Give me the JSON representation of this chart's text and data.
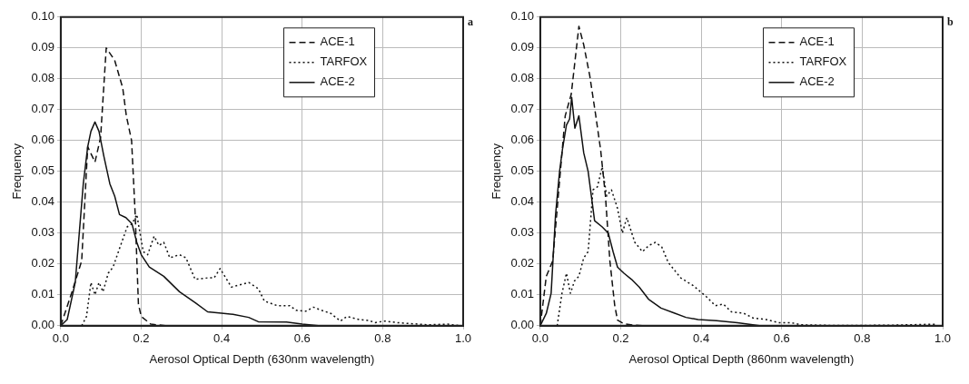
{
  "chart_data": [
    {
      "type": "line",
      "annotations": [
        "a"
      ],
      "xlabel": "Aerosol Optical Depth (630nm wavelength)",
      "ylabel": "Frequency",
      "xlim": [
        0,
        1
      ],
      "ylim": [
        0,
        0.1
      ],
      "xticks": [
        {
          "value": 0,
          "label": "0.0"
        },
        {
          "value": 0.2,
          "label": "0.2"
        },
        {
          "value": 0.4,
          "label": "0.4"
        },
        {
          "value": 0.6,
          "label": "0.6"
        },
        {
          "value": 0.8,
          "label": "0.8"
        },
        {
          "value": 1,
          "label": "1.0"
        }
      ],
      "yticks": [
        {
          "value": 0,
          "label": "0.00"
        },
        {
          "value": 0.01,
          "label": "0.01"
        },
        {
          "value": 0.02,
          "label": "0.02"
        },
        {
          "value": 0.03,
          "label": "0.03"
        },
        {
          "value": 0.04,
          "label": "0.04"
        },
        {
          "value": 0.05,
          "label": "0.05"
        },
        {
          "value": 0.06,
          "label": "0.06"
        },
        {
          "value": 0.07,
          "label": "0.07"
        },
        {
          "value": 0.08,
          "label": "0.08"
        },
        {
          "value": 0.09,
          "label": "0.09"
        },
        {
          "value": 0.1,
          "label": "0.10"
        }
      ],
      "grid": true,
      "legend": "top right",
      "marker": "none",
      "series": [
        {
          "name": "ACE-1",
          "color": "#111111",
          "line_style": "dashed",
          "x": [
            0,
            0.028,
            0.052,
            0.067,
            0.085,
            0.099,
            0.113,
            0.134,
            0.154,
            0.163,
            0.176,
            0.185,
            0.193,
            0.2,
            0.224,
            0.26,
            0.4,
            0.6,
            0.8,
            1
          ],
          "values": [
            0,
            0.011,
            0.021,
            0.058,
            0.053,
            0.061,
            0.09,
            0.086,
            0.077,
            0.068,
            0.06,
            0.036,
            0.007,
            0.003,
            0.0005,
            0,
            0,
            0,
            0,
            0
          ]
        },
        {
          "name": "TARFOX",
          "color": "#111111",
          "line_style": "dotted",
          "x": [
            0.052,
            0.064,
            0.075,
            0.085,
            0.095,
            0.105,
            0.118,
            0.13,
            0.146,
            0.165,
            0.177,
            0.189,
            0.197,
            0.205,
            0.216,
            0.232,
            0.244,
            0.256,
            0.271,
            0.295,
            0.311,
            0.334,
            0.365,
            0.381,
            0.396,
            0.424,
            0.467,
            0.491,
            0.506,
            0.538,
            0.569,
            0.585,
            0.609,
            0.628,
            0.648,
            0.671,
            0.695,
            0.711,
            0.742,
            0.766,
            0.781,
            0.805,
            0.836,
            0.867,
            0.914,
            0.961,
            0.992
          ],
          "values": [
            0,
            0.003,
            0.014,
            0.01,
            0.014,
            0.011,
            0.017,
            0.019,
            0.025,
            0.032,
            0.033,
            0.036,
            0.03,
            0.024,
            0.023,
            0.029,
            0.026,
            0.027,
            0.022,
            0.023,
            0.022,
            0.015,
            0.0155,
            0.0155,
            0.0185,
            0.0125,
            0.014,
            0.012,
            0.008,
            0.0065,
            0.0065,
            0.005,
            0.0047,
            0.006,
            0.005,
            0.004,
            0.0015,
            0.003,
            0.002,
            0.0017,
            0.001,
            0.0015,
            0.001,
            0.0007,
            0.0003,
            0.0005,
            0
          ]
        },
        {
          "name": "ACE-2",
          "color": "#111111",
          "line_style": "solid",
          "x": [
            0,
            0.016,
            0.036,
            0.056,
            0.067,
            0.075,
            0.085,
            0.095,
            0.107,
            0.122,
            0.134,
            0.146,
            0.162,
            0.177,
            0.189,
            0.2,
            0.22,
            0.256,
            0.295,
            0.334,
            0.365,
            0.405,
            0.428,
            0.467,
            0.491,
            0.561,
            0.6,
            0.64,
            0.8,
            1
          ],
          "values": [
            0,
            0.002,
            0.014,
            0.046,
            0.058,
            0.063,
            0.066,
            0.063,
            0.055,
            0.046,
            0.042,
            0.036,
            0.035,
            0.033,
            0.027,
            0.023,
            0.019,
            0.016,
            0.011,
            0.0075,
            0.0045,
            0.004,
            0.0037,
            0.0027,
            0.0013,
            0.0012,
            0.0005,
            0,
            0,
            0
          ]
        }
      ]
    },
    {
      "type": "line",
      "annotations": [
        "b"
      ],
      "xlabel": "Aerosol Optical Depth (860nm wavelength)",
      "ylabel": "Frequency",
      "xlim": [
        0,
        1
      ],
      "ylim": [
        0,
        0.1
      ],
      "xticks": [
        {
          "value": 0,
          "label": "0.0"
        },
        {
          "value": 0.2,
          "label": "0.2"
        },
        {
          "value": 0.4,
          "label": "0.4"
        },
        {
          "value": 0.6,
          "label": "0.6"
        },
        {
          "value": 0.8,
          "label": "0.8"
        },
        {
          "value": 1,
          "label": "1.0"
        }
      ],
      "yticks": [
        {
          "value": 0,
          "label": "0.00"
        },
        {
          "value": 0.01,
          "label": "0.01"
        },
        {
          "value": 0.02,
          "label": "0.02"
        },
        {
          "value": 0.03,
          "label": "0.03"
        },
        {
          "value": 0.04,
          "label": "0.04"
        },
        {
          "value": 0.05,
          "label": "0.05"
        },
        {
          "value": 0.06,
          "label": "0.06"
        },
        {
          "value": 0.07,
          "label": "0.07"
        },
        {
          "value": 0.08,
          "label": "0.08"
        },
        {
          "value": 0.09,
          "label": "0.09"
        },
        {
          "value": 0.1,
          "label": "0.10"
        }
      ],
      "grid": true,
      "legend": "top right",
      "marker": "none",
      "series": [
        {
          "name": "ACE-1",
          "color": "#111111",
          "line_style": "dashed",
          "x": [
            0,
            0.015,
            0.031,
            0.046,
            0.062,
            0.077,
            0.096,
            0.108,
            0.123,
            0.138,
            0.15,
            0.162,
            0.173,
            0.185,
            0.192,
            0.208,
            0.23,
            0.26,
            0.4,
            0.6,
            0.8,
            1
          ],
          "values": [
            0,
            0.016,
            0.021,
            0.044,
            0.068,
            0.075,
            0.097,
            0.091,
            0.081,
            0.068,
            0.057,
            0.042,
            0.021,
            0.0066,
            0.0018,
            0.0006,
            0.0002,
            0,
            0,
            0,
            0,
            0
          ]
        },
        {
          "name": "TARFOX",
          "color": "#111111",
          "line_style": "dotted",
          "x": [
            0.042,
            0.054,
            0.065,
            0.075,
            0.085,
            0.096,
            0.108,
            0.119,
            0.131,
            0.142,
            0.154,
            0.165,
            0.177,
            0.192,
            0.204,
            0.215,
            0.235,
            0.254,
            0.27,
            0.286,
            0.302,
            0.318,
            0.349,
            0.38,
            0.412,
            0.435,
            0.455,
            0.475,
            0.506,
            0.529,
            0.561,
            0.592,
            0.624,
            0.647,
            0.725,
            0.804,
            0.882,
            0.984
          ],
          "values": [
            0,
            0.0105,
            0.017,
            0.0105,
            0.0145,
            0.016,
            0.022,
            0.024,
            0.044,
            0.045,
            0.0515,
            0.042,
            0.044,
            0.038,
            0.03,
            0.035,
            0.027,
            0.024,
            0.026,
            0.027,
            0.0255,
            0.0205,
            0.0155,
            0.013,
            0.0095,
            0.0065,
            0.007,
            0.0045,
            0.004,
            0.0025,
            0.002,
            0.001,
            0.001,
            0.0003,
            0.0001,
            0.0001,
            0.0002,
            0.0005
          ]
        },
        {
          "name": "ACE-2",
          "color": "#111111",
          "line_style": "solid",
          "x": [
            0,
            0.015,
            0.027,
            0.038,
            0.048,
            0.055,
            0.065,
            0.073,
            0.078,
            0.086,
            0.096,
            0.108,
            0.119,
            0.135,
            0.154,
            0.169,
            0.181,
            0.192,
            0.208,
            0.227,
            0.246,
            0.269,
            0.3,
            0.331,
            0.362,
            0.392,
            0.438,
            0.49,
            0.545,
            0.6,
            0.8,
            1
          ],
          "values": [
            0,
            0.004,
            0.0105,
            0.036,
            0.05,
            0.057,
            0.065,
            0.067,
            0.074,
            0.064,
            0.068,
            0.056,
            0.05,
            0.034,
            0.032,
            0.03,
            0.024,
            0.019,
            0.017,
            0.015,
            0.0125,
            0.0086,
            0.0057,
            0.0042,
            0.0027,
            0.002,
            0.0016,
            0.001,
            0,
            0,
            0,
            0
          ]
        }
      ]
    }
  ]
}
